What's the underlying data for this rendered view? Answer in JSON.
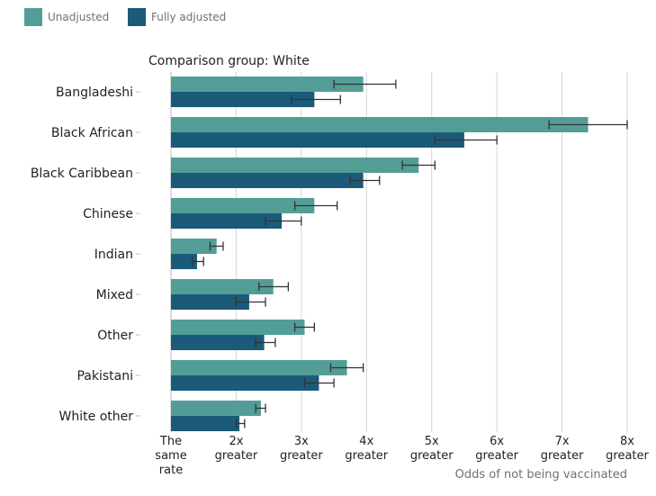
{
  "chart_data": {
    "type": "bar",
    "orientation": "horizontal",
    "subtitle": "Comparison group: White",
    "xlabel": "Odds of not being vaccinated",
    "xlim": [
      1,
      8
    ],
    "x_ticks": [
      {
        "value": 1,
        "label": [
          "The",
          "same",
          "rate"
        ]
      },
      {
        "value": 2,
        "label": [
          "2x",
          "greater"
        ]
      },
      {
        "value": 3,
        "label": [
          "3x",
          "greater"
        ]
      },
      {
        "value": 4,
        "label": [
          "4x",
          "greater"
        ]
      },
      {
        "value": 5,
        "label": [
          "5x",
          "greater"
        ]
      },
      {
        "value": 6,
        "label": [
          "6x",
          "greater"
        ]
      },
      {
        "value": 7,
        "label": [
          "7x",
          "greater"
        ]
      },
      {
        "value": 8,
        "label": [
          "8x",
          "greater"
        ]
      }
    ],
    "grid": true,
    "legend_position": "top-left",
    "categories": [
      "Bangladeshi",
      "Black African",
      "Black Caribbean",
      "Chinese",
      "Indian",
      "Mixed",
      "Other",
      "Pakistani",
      "White other"
    ],
    "series": [
      {
        "name": "Unadjusted",
        "color": "#529e97",
        "values": [
          3.95,
          7.4,
          4.8,
          3.2,
          1.7,
          2.57,
          3.05,
          3.7,
          2.38
        ],
        "ci_low": [
          3.5,
          6.8,
          4.55,
          2.9,
          1.6,
          2.35,
          2.9,
          3.45,
          2.3
        ],
        "ci_high": [
          4.45,
          8.0,
          5.05,
          3.55,
          1.8,
          2.8,
          3.2,
          3.95,
          2.45
        ]
      },
      {
        "name": "Fully adjusted",
        "color": "#1b5a78",
        "values": [
          3.2,
          5.5,
          3.95,
          2.7,
          1.4,
          2.2,
          2.43,
          3.27,
          2.05
        ],
        "ci_low": [
          2.85,
          5.05,
          3.75,
          2.45,
          1.33,
          2.0,
          2.3,
          3.05,
          2.0
        ],
        "ci_high": [
          3.6,
          6.0,
          4.2,
          3.0,
          1.5,
          2.45,
          2.6,
          3.5,
          2.13
        ]
      }
    ]
  }
}
